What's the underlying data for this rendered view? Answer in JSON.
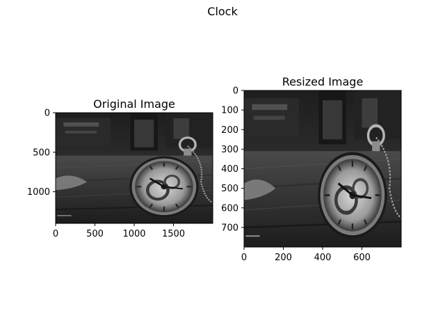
{
  "figure": {
    "title": "Clock"
  },
  "chart_data": [
    {
      "type": "image",
      "title": "Original Image",
      "colormap": "gray",
      "xlim": [
        0,
        2000
      ],
      "ylim": [
        1400,
        0
      ],
      "xticks": [
        0,
        500,
        1000,
        1500
      ],
      "yticks": [
        0,
        500,
        1000
      ]
    },
    {
      "type": "image",
      "title": "Resized Image",
      "colormap": "gray",
      "xlim": [
        0,
        800
      ],
      "ylim": [
        800,
        0
      ],
      "xticks": [
        0,
        200,
        400,
        600
      ],
      "yticks": [
        0,
        100,
        200,
        300,
        400,
        500,
        600,
        700
      ]
    }
  ]
}
